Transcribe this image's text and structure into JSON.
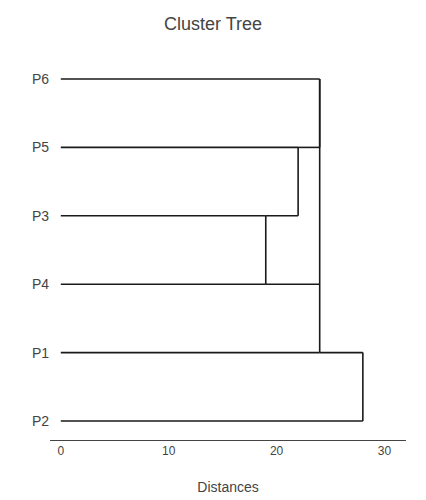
{
  "chart_data": {
    "type": "dendrogram",
    "title": "Cluster Tree",
    "xlabel": "Distances",
    "categories": [
      "P6",
      "P5",
      "P3",
      "P4",
      "P1",
      "P2"
    ],
    "merges": [
      {
        "a": "P4",
        "b": "P3",
        "distance": 19
      },
      {
        "a": "P3",
        "b": "P5",
        "distance": 22
      },
      {
        "a": "P5",
        "b": "P6",
        "distance": 24
      },
      {
        "a": "P4",
        "b": "P1",
        "distance": 24
      },
      {
        "a": "P1",
        "b": "P2",
        "distance": 28
      }
    ],
    "xlim": [
      -1,
      32
    ],
    "xticks": [
      0,
      10,
      20,
      30
    ],
    "color": "#1a1a1a",
    "grid": false
  }
}
